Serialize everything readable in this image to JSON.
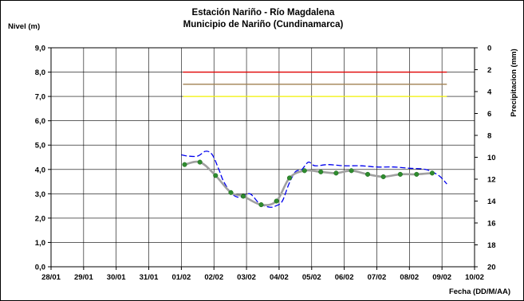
{
  "chart_data": {
    "type": "line",
    "title": "Estación Nariño  - Río Magdalena",
    "subtitle": "Municipio de Nariño (Cundinamarca)",
    "ylabel": "Nivel (m)",
    "y2label": "Precipitacion (mm)",
    "xlabel": "Fecha (DD/M/AA)",
    "ylim": [
      0,
      9
    ],
    "y2lim": [
      0,
      20
    ],
    "y2_inverted": true,
    "xlim": [
      0,
      13
    ],
    "x_tick_labels": [
      "28/01",
      "29/01",
      "30/01",
      "31/01",
      "01/02",
      "02/02",
      "03/02",
      "04/02",
      "05/02",
      "06/02",
      "07/02",
      "08/02",
      "09/02",
      "10/02"
    ],
    "y_tick_labels": [
      "0,0",
      "1,0",
      "2,0",
      "3,0",
      "4,0",
      "5,0",
      "6,0",
      "7,0",
      "8,0",
      "9,0"
    ],
    "y2_tick_labels": [
      "0",
      "2",
      "4",
      "6",
      "8",
      "10",
      "12",
      "14",
      "16",
      "18",
      "20"
    ],
    "grid": true,
    "thresholds": [
      {
        "value": 8.0,
        "color": "#e00000",
        "x_start": 4.05,
        "x_end": 12.15
      },
      {
        "value": 7.5,
        "color": "#a08050",
        "x_start": 4.05,
        "x_end": 12.15
      },
      {
        "value": 7.0,
        "color": "#f0f000",
        "x_start": 4.05,
        "x_end": 12.15
      }
    ],
    "series": [
      {
        "style": "smooth gray line with green markers",
        "color": "#a0a0a0",
        "marker_color": "#2e8b2e",
        "x": [
          4.1,
          4.57,
          5.05,
          5.52,
          5.9,
          6.45,
          6.92,
          7.32,
          7.78,
          8.28,
          8.75,
          9.22,
          9.72,
          10.2,
          10.72,
          11.22,
          11.7
        ],
        "y": [
          4.2,
          4.3,
          3.75,
          3.05,
          2.9,
          2.55,
          2.7,
          3.65,
          3.95,
          3.9,
          3.85,
          3.95,
          3.8,
          3.7,
          3.8,
          3.8,
          3.85
        ]
      },
      {
        "style": "dashed blue line",
        "color": "#0000ee",
        "x": [
          4.0,
          4.2,
          4.5,
          4.75,
          4.95,
          5.15,
          5.3,
          5.55,
          5.8,
          6.1,
          6.4,
          6.7,
          6.9,
          7.1,
          7.3,
          7.5,
          7.7,
          7.9,
          8.1,
          8.5,
          9.0,
          9.5,
          10.0,
          10.5,
          11.0,
          11.5,
          11.9,
          12.15
        ],
        "y": [
          4.6,
          4.55,
          4.55,
          4.75,
          4.6,
          4.0,
          3.5,
          3.0,
          2.85,
          3.0,
          2.6,
          2.45,
          2.5,
          2.7,
          3.4,
          3.9,
          4.0,
          4.3,
          4.15,
          4.2,
          4.15,
          4.15,
          4.1,
          4.1,
          4.05,
          4.0,
          3.75,
          3.4
        ]
      }
    ]
  }
}
